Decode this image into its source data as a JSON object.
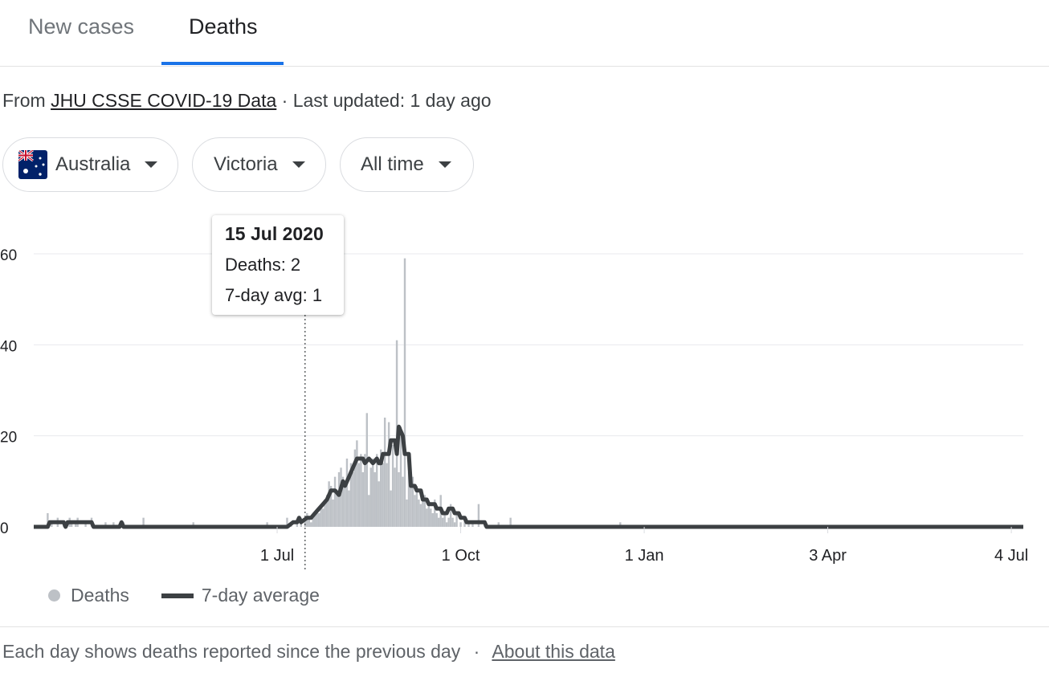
{
  "tabs": [
    {
      "label": "New cases",
      "active": false
    },
    {
      "label": "Deaths",
      "active": true
    }
  ],
  "source": {
    "prefix": "From",
    "link_text": "JHU CSSE COVID-19 Data",
    "separator": "·",
    "updated": "Last updated: 1 day ago"
  },
  "filters": {
    "country": {
      "label": "Australia",
      "flag_icon": "australia-flag-icon"
    },
    "region": {
      "label": "Victoria"
    },
    "period": {
      "label": "All time"
    }
  },
  "tooltip": {
    "date": "15 Jul 2020",
    "deaths": "Deaths: 2",
    "avg": "7-day avg: 1"
  },
  "legend": {
    "bars": "Deaths",
    "line": "7-day average"
  },
  "footer": {
    "text": "Each day shows deaths reported since the previous day",
    "separator": "·",
    "link_text": "About this data"
  },
  "colors": {
    "bar": "#bdc1c6",
    "line": "#3c4043",
    "accent": "#1a73e8",
    "grid": "#e8eaed"
  },
  "chart_data": {
    "type": "bar",
    "title": "",
    "xlabel": "",
    "ylabel": "",
    "ylim": [
      0,
      60
    ],
    "y_ticks": [
      0,
      20,
      40,
      60
    ],
    "x_ticks": [
      "1 Jul",
      "1 Oct",
      "1 Jan",
      "3 Apr",
      "4 Jul"
    ],
    "x_range": [
      "2020-03-01",
      "2021-07-10"
    ],
    "tick_dates": [
      "2020-07-01",
      "2020-10-01",
      "2021-01-01",
      "2021-04-03",
      "2021-07-04"
    ],
    "grid": true,
    "legend_position": "bottom-left",
    "highlight_date": "2020-07-15",
    "series": [
      {
        "name": "Deaths",
        "kind": "bar",
        "points": [
          [
            "2020-03-08",
            3
          ],
          [
            "2020-03-10",
            1
          ],
          [
            "2020-03-13",
            2
          ],
          [
            "2020-03-16",
            1
          ],
          [
            "2020-03-19",
            2
          ],
          [
            "2020-03-20",
            1
          ],
          [
            "2020-03-22",
            1
          ],
          [
            "2020-03-23",
            2
          ],
          [
            "2020-03-27",
            1
          ],
          [
            "2020-03-30",
            2
          ],
          [
            "2020-04-06",
            1
          ],
          [
            "2020-04-10",
            1
          ],
          [
            "2020-04-15",
            1
          ],
          [
            "2020-04-25",
            2
          ],
          [
            "2020-05-20",
            1
          ],
          [
            "2020-06-26",
            1
          ],
          [
            "2020-07-06",
            2
          ],
          [
            "2020-07-08",
            1
          ],
          [
            "2020-07-11",
            1
          ],
          [
            "2020-07-13",
            2
          ],
          [
            "2020-07-15",
            2
          ],
          [
            "2020-07-16",
            3
          ],
          [
            "2020-07-17",
            2
          ],
          [
            "2020-07-18",
            1
          ],
          [
            "2020-07-19",
            2
          ],
          [
            "2020-07-20",
            3
          ],
          [
            "2020-07-21",
            4
          ],
          [
            "2020-07-22",
            3
          ],
          [
            "2020-07-23",
            5
          ],
          [
            "2020-07-24",
            4
          ],
          [
            "2020-07-25",
            6
          ],
          [
            "2020-07-26",
            7
          ],
          [
            "2020-07-27",
            10
          ],
          [
            "2020-07-28",
            9
          ],
          [
            "2020-07-29",
            6
          ],
          [
            "2020-07-30",
            11
          ],
          [
            "2020-07-31",
            8
          ],
          [
            "2020-08-01",
            12
          ],
          [
            "2020-08-02",
            13
          ],
          [
            "2020-08-03",
            11
          ],
          [
            "2020-08-04",
            10
          ],
          [
            "2020-08-05",
            15
          ],
          [
            "2020-08-06",
            8
          ],
          [
            "2020-08-07",
            14
          ],
          [
            "2020-08-08",
            12
          ],
          [
            "2020-08-09",
            17
          ],
          [
            "2020-08-10",
            19
          ],
          [
            "2020-08-11",
            14
          ],
          [
            "2020-08-12",
            16
          ],
          [
            "2020-08-13",
            12
          ],
          [
            "2020-08-14",
            16
          ],
          [
            "2020-08-15",
            25
          ],
          [
            "2020-08-16",
            7
          ],
          [
            "2020-08-17",
            13
          ],
          [
            "2020-08-18",
            15
          ],
          [
            "2020-08-19",
            12
          ],
          [
            "2020-08-20",
            16
          ],
          [
            "2020-08-21",
            10
          ],
          [
            "2020-08-22",
            17
          ],
          [
            "2020-08-23",
            14
          ],
          [
            "2020-08-24",
            24
          ],
          [
            "2020-08-25",
            14
          ],
          [
            "2020-08-26",
            23
          ],
          [
            "2020-08-27",
            8
          ],
          [
            "2020-08-28",
            18
          ],
          [
            "2020-08-29",
            13
          ],
          [
            "2020-08-30",
            41
          ],
          [
            "2020-08-31",
            12
          ],
          [
            "2020-09-01",
            22
          ],
          [
            "2020-09-02",
            11
          ],
          [
            "2020-09-03",
            59
          ],
          [
            "2020-09-04",
            6
          ],
          [
            "2020-09-05",
            12
          ],
          [
            "2020-09-06",
            9
          ],
          [
            "2020-09-07",
            11
          ],
          [
            "2020-09-08",
            7
          ],
          [
            "2020-09-09",
            9
          ],
          [
            "2020-09-10",
            6
          ],
          [
            "2020-09-11",
            5
          ],
          [
            "2020-09-12",
            6
          ],
          [
            "2020-09-13",
            7
          ],
          [
            "2020-09-14",
            4
          ],
          [
            "2020-09-15",
            5
          ],
          [
            "2020-09-16",
            4
          ],
          [
            "2020-09-17",
            3
          ],
          [
            "2020-09-18",
            6
          ],
          [
            "2020-09-19",
            3
          ],
          [
            "2020-09-20",
            2
          ],
          [
            "2020-09-21",
            7
          ],
          [
            "2020-09-22",
            2
          ],
          [
            "2020-09-23",
            3
          ],
          [
            "2020-09-24",
            1
          ],
          [
            "2020-09-25",
            2
          ],
          [
            "2020-09-26",
            5
          ],
          [
            "2020-09-27",
            2
          ],
          [
            "2020-09-28",
            1
          ],
          [
            "2020-09-29",
            3
          ],
          [
            "2020-10-01",
            1
          ],
          [
            "2020-10-03",
            2
          ],
          [
            "2020-10-05",
            1
          ],
          [
            "2020-10-07",
            1
          ],
          [
            "2020-10-10",
            5
          ],
          [
            "2020-10-13",
            1
          ],
          [
            "2020-10-20",
            1
          ],
          [
            "2020-10-26",
            2
          ],
          [
            "2020-12-20",
            1
          ]
        ]
      },
      {
        "name": "7-day average",
        "kind": "line",
        "points": [
          [
            "2020-03-01",
            0
          ],
          [
            "2020-03-08",
            0
          ],
          [
            "2020-03-09",
            1
          ],
          [
            "2020-03-16",
            1
          ],
          [
            "2020-03-17",
            0
          ],
          [
            "2020-03-18",
            1
          ],
          [
            "2020-03-30",
            1
          ],
          [
            "2020-03-31",
            0
          ],
          [
            "2020-04-13",
            0
          ],
          [
            "2020-04-14",
            1
          ],
          [
            "2020-04-15",
            0
          ],
          [
            "2020-07-06",
            0
          ],
          [
            "2020-07-09",
            1
          ],
          [
            "2020-07-10",
            1
          ],
          [
            "2020-07-11",
            1
          ],
          [
            "2020-07-12",
            2
          ],
          [
            "2020-07-13",
            1
          ],
          [
            "2020-07-16",
            2
          ],
          [
            "2020-07-18",
            2
          ],
          [
            "2020-07-20",
            3
          ],
          [
            "2020-07-22",
            4
          ],
          [
            "2020-07-24",
            5
          ],
          [
            "2020-07-26",
            6
          ],
          [
            "2020-07-28",
            8
          ],
          [
            "2020-07-30",
            8
          ],
          [
            "2020-08-01",
            7
          ],
          [
            "2020-08-03",
            10
          ],
          [
            "2020-08-04",
            9
          ],
          [
            "2020-08-06",
            11
          ],
          [
            "2020-08-08",
            13
          ],
          [
            "2020-08-10",
            15
          ],
          [
            "2020-08-13",
            15
          ],
          [
            "2020-08-14",
            14
          ],
          [
            "2020-08-16",
            15
          ],
          [
            "2020-08-18",
            14
          ],
          [
            "2020-08-20",
            15
          ],
          [
            "2020-08-21",
            14
          ],
          [
            "2020-08-22",
            14
          ],
          [
            "2020-08-23",
            16
          ],
          [
            "2020-08-26",
            16
          ],
          [
            "2020-08-27",
            19
          ],
          [
            "2020-08-29",
            19
          ],
          [
            "2020-08-30",
            16
          ],
          [
            "2020-08-31",
            22
          ],
          [
            "2020-09-02",
            20
          ],
          [
            "2020-09-03",
            16
          ],
          [
            "2020-09-05",
            16
          ],
          [
            "2020-09-06",
            9
          ],
          [
            "2020-09-08",
            9
          ],
          [
            "2020-09-09",
            8
          ],
          [
            "2020-09-11",
            8
          ],
          [
            "2020-09-12",
            6
          ],
          [
            "2020-09-14",
            6
          ],
          [
            "2020-09-15",
            5
          ],
          [
            "2020-09-18",
            5
          ],
          [
            "2020-09-19",
            4
          ],
          [
            "2020-09-21",
            4
          ],
          [
            "2020-09-22",
            3
          ],
          [
            "2020-09-24",
            3
          ],
          [
            "2020-09-25",
            4
          ],
          [
            "2020-09-27",
            4
          ],
          [
            "2020-09-28",
            3
          ],
          [
            "2020-09-30",
            3
          ],
          [
            "2020-10-01",
            2
          ],
          [
            "2020-10-03",
            2
          ],
          [
            "2020-10-04",
            1
          ],
          [
            "2020-10-13",
            1
          ],
          [
            "2020-10-14",
            0
          ],
          [
            "2021-07-10",
            0
          ]
        ]
      }
    ]
  }
}
